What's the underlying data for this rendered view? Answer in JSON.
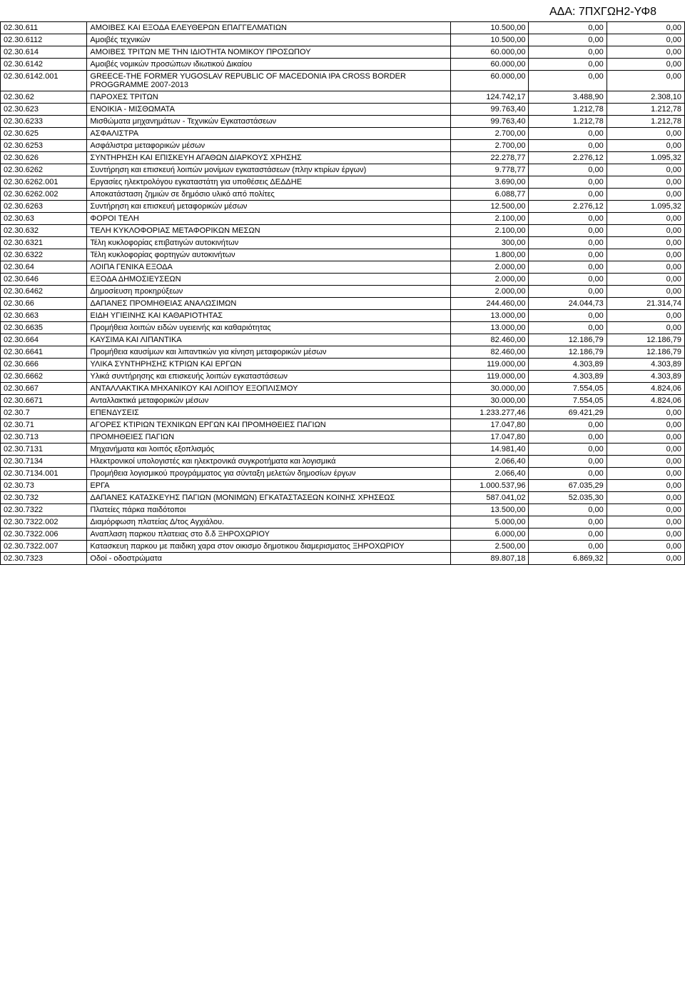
{
  "header": "ΑΔΑ: 7ΠΧΓΩΗ2-ΥΦ8",
  "table": {
    "columns": [
      {
        "key": "code",
        "class": "col-code",
        "align": "left"
      },
      {
        "key": "desc",
        "class": "col-desc",
        "align": "left"
      },
      {
        "key": "v1",
        "class": "col-num",
        "align": "right"
      },
      {
        "key": "v2",
        "class": "col-num",
        "align": "right"
      },
      {
        "key": "v3",
        "class": "col-num",
        "align": "right"
      }
    ],
    "rows": [
      [
        "02.30.611",
        "ΑΜΟΙΒΕΣ ΚΑΙ ΕΞΟΔΑ ΕΛΕΥΘΕΡΩΝ ΕΠΑΓΓΕΛΜΑΤΙΩΝ",
        "10.500,00",
        "0,00",
        "0,00"
      ],
      [
        "02.30.6112",
        "Αμοιβές τεχνικών",
        "10.500,00",
        "0,00",
        "0,00"
      ],
      [
        "02.30.614",
        "ΑΜΟΙΒΕΣ ΤΡΙΤΩΝ ΜΕ ΤΗΝ ΙΔΙΟΤΗΤΑ ΝΟΜΙΚΟΥ ΠΡΟΣΩΠΟΥ",
        "60.000,00",
        "0,00",
        "0,00"
      ],
      [
        "02.30.6142",
        "Αμοιβές νομικών προσώπων ιδιωτικού Δικαίου",
        "60.000,00",
        "0,00",
        "0,00"
      ],
      [
        "02.30.6142.001",
        "GREECE-THE FORMER YUGOSLAV REPUBLIC OF MACEDONIA IPA CROSS BORDER PROGGRAMME 2007-2013",
        "60.000,00",
        "0,00",
        "0,00"
      ],
      [
        "02.30.62",
        "ΠΑΡΟΧΕΣ ΤΡΙΤΩΝ",
        "124.742,17",
        "3.488,90",
        "2.308,10"
      ],
      [
        "02.30.623",
        "ΕΝΟΙΚΙΑ - ΜΙΣΘΩΜΑΤΑ",
        "99.763,40",
        "1.212,78",
        "1.212,78"
      ],
      [
        "02.30.6233",
        "Μισθώματα μηχανημάτων - Τεχνικών Εγκαταστάσεων",
        "99.763,40",
        "1.212,78",
        "1.212,78"
      ],
      [
        "02.30.625",
        "ΑΣΦΑΛΙΣΤΡΑ",
        "2.700,00",
        "0,00",
        "0,00"
      ],
      [
        "02.30.6253",
        "Ασφάλιστρα μεταφορικών μέσων",
        "2.700,00",
        "0,00",
        "0,00"
      ],
      [
        "02.30.626",
        "ΣΥΝΤΗΡΗΣΗ ΚΑΙ ΕΠΙΣΚΕΥΗ ΑΓΑΘΩΝ ΔΙΑΡΚΟΥΣ ΧΡΗΣΗΣ",
        "22.278,77",
        "2.276,12",
        "1.095,32"
      ],
      [
        "02.30.6262",
        "Συντήρηση και επισκευή λοιπών μονίμων εγκαταστάσεων (πλην κτιρίων έργων)",
        "9.778,77",
        "0,00",
        "0,00"
      ],
      [
        "02.30.6262.001",
        "Εργασίες ηλεκτρολόγου εγκαταστάτη για υποθέσεις ΔΕΔΔΗΕ",
        "3.690,00",
        "0,00",
        "0,00"
      ],
      [
        "02.30.6262.002",
        "Αποκατάσταση ζημιών σε δημόσιο υλικό από πολίτες",
        "6.088,77",
        "0,00",
        "0,00"
      ],
      [
        "02.30.6263",
        "Συντήρηση και επισκευή μεταφορικών μέσων",
        "12.500,00",
        "2.276,12",
        "1.095,32"
      ],
      [
        "02.30.63",
        "ΦΟΡΟΙ ΤΕΛΗ",
        "2.100,00",
        "0,00",
        "0,00"
      ],
      [
        "02.30.632",
        "ΤΕΛΗ ΚΥΚΛΟΦΟΡΙΑΣ ΜΕΤΑΦΟΡΙΚΩΝ ΜΕΣΩΝ",
        "2.100,00",
        "0,00",
        "0,00"
      ],
      [
        "02.30.6321",
        "Τέλη κυκλοφορίας επιβατιγών αυτοκινήτων",
        "300,00",
        "0,00",
        "0,00"
      ],
      [
        "02.30.6322",
        "Τέλη κυκλοφορίας φορτηγών αυτοκινήτων",
        "1.800,00",
        "0,00",
        "0,00"
      ],
      [
        "02.30.64",
        "ΛΟΙΠΑ ΓΕΝΙΚΑ ΕΞΟΔΑ",
        "2.000,00",
        "0,00",
        "0,00"
      ],
      [
        "02.30.646",
        "ΕΞΟΔΑ ΔΗΜΟΣΙΕΥΣΕΩΝ",
        "2.000,00",
        "0,00",
        "0,00"
      ],
      [
        "02.30.6462",
        "Δημοσίευση προκηρύξεων",
        "2.000,00",
        "0,00",
        "0,00"
      ],
      [
        "02.30.66",
        "ΔΑΠΑΝΕΣ ΠΡΟΜΗΘΕΙΑΣ ΑΝΑΛΩΣΙΜΩΝ",
        "244.460,00",
        "24.044,73",
        "21.314,74"
      ],
      [
        "02.30.663",
        "ΕΙΔΗ ΥΓΙΕΙΝΗΣ ΚΑΙ ΚΑΘΑΡΙΟΤΗΤΑΣ",
        "13.000,00",
        "0,00",
        "0,00"
      ],
      [
        "02.30.6635",
        "Προμήθεια λοιπών ειδών υγειεινής και καθαριότητας",
        "13.000,00",
        "0,00",
        "0,00"
      ],
      [
        "02.30.664",
        "ΚΑΥΣΙΜΑ ΚΑΙ ΛΙΠΑΝΤΙΚΑ",
        "82.460,00",
        "12.186,79",
        "12.186,79"
      ],
      [
        "02.30.6641",
        "Προμήθεια καυσίμων και λιπαντικών για κίνηση μεταφορικών μέσων",
        "82.460,00",
        "12.186,79",
        "12.186,79"
      ],
      [
        "02.30.666",
        "ΥΛΙΚΑ ΣΥΝΤΗΡΗΣΗΣ ΚΤΡΙΩΝ ΚΑΙ ΕΡΓΩΝ",
        "119.000,00",
        "4.303,89",
        "4.303,89"
      ],
      [
        "02.30.6662",
        "Υλικά συντήρησης και επισκευής λοιπών εγκαταστάσεων",
        "119.000,00",
        "4.303,89",
        "4.303,89"
      ],
      [
        "02.30.667",
        "ΑΝΤΑΛΛΑΚΤΙΚΑ ΜΗΧΑΝΙΚΟΥ ΚΑΙ ΛΟΙΠΟΥ ΕΞΟΠΛΙΣΜΟΥ",
        "30.000,00",
        "7.554,05",
        "4.824,06"
      ],
      [
        "02.30.6671",
        "Ανταλλακτικά μεταφορικών μέσων",
        "30.000,00",
        "7.554,05",
        "4.824,06"
      ],
      [
        "02.30.7",
        "ΕΠΕΝΔΥΣΕΙΣ",
        "1.233.277,46",
        "69.421,29",
        "0,00"
      ],
      [
        "02.30.71",
        "ΑΓΟΡΕΣ ΚΤΙΡΙΩΝ ΤΕΧΝΙΚΩΝ ΕΡΓΩΝ ΚΑΙ ΠΡΟΜΗΘΕΙΕΣ ΠΑΓΙΩΝ",
        "17.047,80",
        "0,00",
        "0,00"
      ],
      [
        "02.30.713",
        "ΠΡΟΜΗΘΕΙΕΣ ΠΑΓΙΩΝ",
        "17.047,80",
        "0,00",
        "0,00"
      ],
      [
        "02.30.7131",
        "Μηχανήματα και λοιπός εξοπλισμός",
        "14.981,40",
        "0,00",
        "0,00"
      ],
      [
        "02.30.7134",
        "Ηλεκτρονικοί υπολογιστές και ηλεκτρονικά συγκροτήματα και λογισμικά",
        "2.066,40",
        "0,00",
        "0,00"
      ],
      [
        "02.30.7134.001",
        "Προμήθεια λογισμικού προγράμματος για σύνταξη μελετών δημοσίων έργων",
        "2.066,40",
        "0,00",
        "0,00"
      ],
      [
        "02.30.73",
        "ΕΡΓΑ",
        "1.000.537,96",
        "67.035,29",
        "0,00"
      ],
      [
        "02.30.732",
        "ΔΑΠΑΝΕΣ ΚΑΤΑΣΚΕΥΗΣ ΠΑΓΙΩΝ (ΜΟΝΙΜΩΝ) ΕΓΚΑΤΑΣΤΑΣΕΩΝ ΚΟΙΝΗΣ ΧΡΗΣΕΩΣ",
        "587.041,02",
        "52.035,30",
        "0,00"
      ],
      [
        "02.30.7322",
        "Πλατείες πάρκα παιδότοποι",
        "13.500,00",
        "0,00",
        "0,00"
      ],
      [
        "02.30.7322.002",
        "Διαμόρφωση πλατείας Δ/τος Αγχιάλου.",
        "5.000,00",
        "0,00",
        "0,00"
      ],
      [
        "02.30.7322.006",
        "Αναπλαση παρκου πλατειας στο δ.δ ΞΗΡΟΧΩΡΙΟΥ",
        "6.000,00",
        "0,00",
        "0,00"
      ],
      [
        "02.30.7322.007",
        "Κατασκευη παρκου με παιδικη χαρα στον οικισμο δημοτικου διαμερισματος ΞΗΡΟΧΩΡΙΟΥ",
        "2.500,00",
        "0,00",
        "0,00"
      ],
      [
        "02.30.7323",
        "Οδοί - οδοστρώματα",
        "89.807,18",
        "6.869,32",
        "0,00"
      ]
    ]
  }
}
